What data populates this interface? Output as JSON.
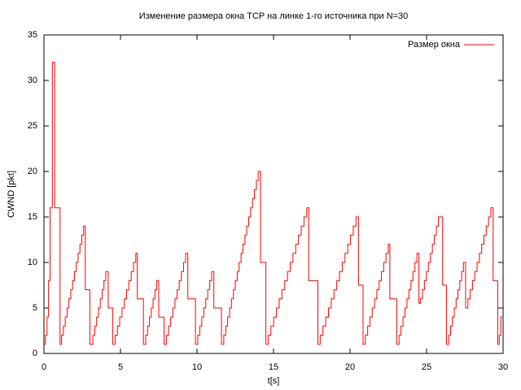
{
  "chart_data": {
    "type": "step",
    "title": "Изменение размера окна TCP на линке 1-го источника при N=30",
    "xlabel": "t[s]",
    "ylabel": "CWND [pkt]",
    "xlim": [
      0,
      30
    ],
    "ylim": [
      0,
      35
    ],
    "xticks": [
      0,
      5,
      10,
      15,
      20,
      25,
      30
    ],
    "yticks": [
      0,
      5,
      10,
      15,
      20,
      25,
      30,
      35
    ],
    "grid": false,
    "legend": "top-right",
    "series": [
      {
        "name": "Размер окна",
        "color": "#ff0000",
        "x": [
          0,
          0.1,
          0.2,
          0.3,
          0.4,
          0.55,
          0.7,
          1.05,
          1.15,
          1.27,
          1.39,
          1.51,
          1.63,
          1.75,
          1.87,
          1.99,
          2.11,
          2.23,
          2.35,
          2.47,
          2.59,
          2.7,
          3.0,
          3.2,
          3.32,
          3.44,
          3.56,
          3.68,
          3.8,
          3.92,
          4.04,
          4.2,
          4.5,
          4.65,
          4.8,
          4.95,
          5.1,
          5.25,
          5.4,
          5.55,
          5.7,
          5.85,
          6.0,
          6.1,
          6.5,
          6.65,
          6.77,
          6.89,
          7.01,
          7.13,
          7.25,
          7.37,
          7.5,
          7.85,
          8.0,
          8.14,
          8.28,
          8.42,
          8.56,
          8.7,
          8.84,
          8.98,
          9.12,
          9.26,
          9.4,
          9.9,
          10.05,
          10.18,
          10.31,
          10.44,
          10.57,
          10.7,
          10.83,
          10.96,
          11.1,
          11.6,
          11.75,
          11.88,
          12,
          12.13,
          12.25,
          12.38,
          12.5,
          12.63,
          12.75,
          12.88,
          13,
          13.13,
          13.25,
          13.38,
          13.5,
          13.63,
          13.75,
          13.88,
          14.0,
          14.15,
          14.5,
          14.65,
          14.83,
          15.01,
          15.19,
          15.37,
          15.55,
          15.73,
          15.91,
          16.09,
          16.27,
          16.45,
          16.63,
          16.81,
          16.99,
          17.17,
          17.3,
          17.9,
          18.05,
          18.23,
          18.41,
          18.59,
          18.77,
          18.95,
          19.13,
          19.31,
          19.49,
          19.67,
          19.85,
          20.03,
          20.21,
          20.39,
          20.55,
          20.85,
          21,
          21.15,
          21.3,
          21.45,
          21.6,
          21.75,
          21.9,
          22.05,
          22.2,
          22.35,
          22.5,
          22.6,
          23.05,
          23.2,
          23.33,
          23.46,
          23.59,
          23.72,
          23.85,
          23.98,
          24.11,
          24.24,
          24.37,
          24.5,
          24.6,
          24.73,
          24.86,
          24.99,
          25.12,
          25.25,
          25.38,
          25.51,
          25.64,
          25.77,
          26.05,
          26.3,
          26.45,
          26.57,
          26.69,
          26.81,
          26.93,
          27.05,
          27.17,
          27.29,
          27.41,
          27.55,
          27.7,
          27.85,
          28,
          28.15,
          28.3,
          28.45,
          28.6,
          28.75,
          28.9,
          29.05,
          29.2,
          29.35,
          29.65,
          29.75,
          29.85,
          29.95
        ],
        "values": [
          1,
          2,
          4,
          8,
          16,
          32,
          16,
          1,
          2,
          3,
          4,
          5,
          6,
          7,
          8,
          9,
          10,
          11,
          12,
          13,
          14,
          7,
          1,
          2,
          3,
          4,
          5,
          6,
          7,
          8,
          9,
          5,
          1,
          2,
          3,
          4,
          5,
          6,
          7,
          8,
          9,
          10,
          11,
          6,
          1,
          2,
          3,
          4,
          5,
          6,
          7,
          8,
          4,
          1,
          2,
          3,
          4,
          5,
          6,
          7,
          8,
          9,
          10,
          11,
          6,
          1,
          2,
          3,
          4,
          5,
          6,
          7,
          8,
          9,
          5,
          1,
          2,
          3,
          4,
          5,
          6,
          7,
          8,
          9,
          10,
          11,
          12,
          13,
          14,
          15,
          16,
          17,
          18,
          19,
          20,
          10,
          1,
          2,
          3,
          4,
          5,
          6,
          7,
          8,
          9,
          10,
          11,
          12,
          13,
          14,
          15,
          16,
          8,
          1,
          2,
          3,
          4,
          5,
          6,
          7,
          8,
          9,
          10,
          11,
          12,
          13,
          14,
          15,
          7.5,
          1,
          2,
          3,
          4,
          5,
          6,
          7,
          8,
          9,
          10,
          11,
          12,
          6,
          1,
          2,
          3,
          4,
          5,
          6,
          7,
          8,
          9,
          10,
          11,
          5.5,
          6,
          7,
          8,
          9,
          10,
          11,
          12,
          13,
          14,
          15,
          7.5,
          1,
          2,
          3,
          4,
          5,
          6,
          7,
          8,
          9,
          10,
          5,
          6,
          7,
          8,
          9,
          10,
          11,
          12,
          13,
          14,
          15,
          16,
          8,
          1,
          2,
          4,
          4
        ]
      }
    ]
  }
}
